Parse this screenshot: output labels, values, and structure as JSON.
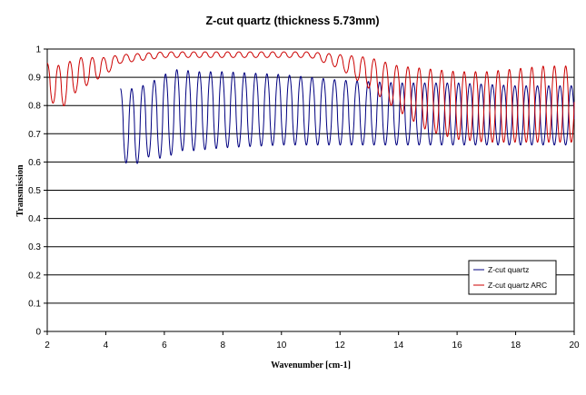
{
  "chart_data": {
    "type": "line",
    "title": "Z-cut quartz (thickness  5.73mm)",
    "xlabel": "Wavenumber [cm-1]",
    "ylabel": "Transmission",
    "xlim": [
      2,
      20
    ],
    "ylim": [
      0,
      1
    ],
    "x_ticks": [
      2,
      4,
      6,
      8,
      10,
      12,
      14,
      16,
      18,
      20
    ],
    "y_ticks": [
      0,
      0.1,
      0.2,
      0.3,
      0.4,
      0.5,
      0.6,
      0.7,
      0.8,
      0.9,
      1
    ],
    "y_tick_labels": [
      "0",
      "0.1",
      "0.2",
      "0.3",
      "0.4",
      "0.5",
      "0.6",
      "0.7",
      "0.8",
      "0.9",
      "1"
    ],
    "grid": "horizontal",
    "legend_position": "bottom-right",
    "series": [
      {
        "name": "Z-cut quartz",
        "color": "#000080",
        "x_range": [
          4.5,
          20
        ],
        "fringe_period": 0.385,
        "envelope": [
          {
            "x": 4.5,
            "max": 0.86,
            "min": 0.6
          },
          {
            "x": 5.0,
            "max": 0.86,
            "min": 0.59
          },
          {
            "x": 5.5,
            "max": 0.88,
            "min": 0.62
          },
          {
            "x": 6.0,
            "max": 0.91,
            "min": 0.61
          },
          {
            "x": 6.5,
            "max": 0.93,
            "min": 0.64
          },
          {
            "x": 7.0,
            "max": 0.92,
            "min": 0.64
          },
          {
            "x": 8.0,
            "max": 0.92,
            "min": 0.65
          },
          {
            "x": 10.0,
            "max": 0.91,
            "min": 0.66
          },
          {
            "x": 12.0,
            "max": 0.89,
            "min": 0.66
          },
          {
            "x": 14.0,
            "max": 0.88,
            "min": 0.66
          },
          {
            "x": 16.0,
            "max": 0.88,
            "min": 0.66
          },
          {
            "x": 18.0,
            "max": 0.87,
            "min": 0.66
          },
          {
            "x": 20.0,
            "max": 0.87,
            "min": 0.66
          }
        ]
      },
      {
        "name": "Z-cut quartz ARC",
        "color": "#cc0000",
        "x_range": [
          2,
          20
        ],
        "fringe_period": 0.385,
        "envelope": [
          {
            "x": 2.0,
            "max": 0.95,
            "min": 0.82
          },
          {
            "x": 2.5,
            "max": 0.94,
            "min": 0.79
          },
          {
            "x": 3.0,
            "max": 0.97,
            "min": 0.85
          },
          {
            "x": 3.5,
            "max": 0.97,
            "min": 0.88
          },
          {
            "x": 4.0,
            "max": 0.97,
            "min": 0.91
          },
          {
            "x": 4.5,
            "max": 0.98,
            "min": 0.95
          },
          {
            "x": 6.0,
            "max": 0.99,
            "min": 0.97
          },
          {
            "x": 8.0,
            "max": 0.99,
            "min": 0.97
          },
          {
            "x": 10.0,
            "max": 0.99,
            "min": 0.97
          },
          {
            "x": 11.0,
            "max": 0.99,
            "min": 0.97
          },
          {
            "x": 12.0,
            "max": 0.98,
            "min": 0.93
          },
          {
            "x": 13.0,
            "max": 0.97,
            "min": 0.86
          },
          {
            "x": 14.0,
            "max": 0.94,
            "min": 0.78
          },
          {
            "x": 15.0,
            "max": 0.93,
            "min": 0.71
          },
          {
            "x": 16.0,
            "max": 0.92,
            "min": 0.68
          },
          {
            "x": 17.0,
            "max": 0.92,
            "min": 0.67
          },
          {
            "x": 18.0,
            "max": 0.93,
            "min": 0.67
          },
          {
            "x": 19.0,
            "max": 0.94,
            "min": 0.67
          },
          {
            "x": 20.0,
            "max": 0.94,
            "min": 0.67
          }
        ]
      }
    ]
  }
}
